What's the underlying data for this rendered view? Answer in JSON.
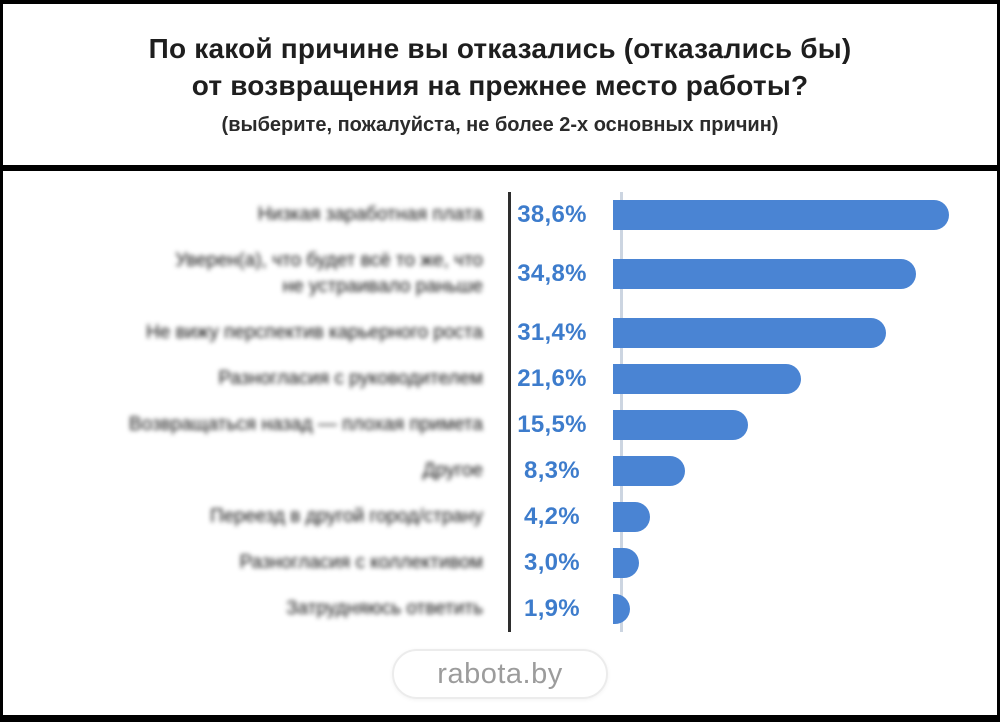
{
  "header": {
    "title_line1": "По какой причине вы отказались (отказались бы)",
    "title_line2": "от возвращения на прежнее место работы?",
    "subtitle": "(выберите, пожалуйста, не более 2-х основных причин)"
  },
  "chart_data": {
    "type": "bar",
    "orientation": "horizontal",
    "title": "По какой причине вы отказались (отказались бы) от возвращения на прежнее место работы?",
    "subtitle": "(выберите, пожалуйста, не более 2-х основных причин)",
    "categories": [
      "Низкая заработная плата",
      "Уверен(а), что будет всё то же, что не устраивало раньше",
      "Не вижу перспектив карьерного роста",
      "Разногласия с руководителем",
      "Возвращаться назад — плохая примета",
      "Другое",
      "Переезд в другой город/страну",
      "Разногласия с коллективом",
      "Затрудняюсь ответить"
    ],
    "values": [
      38.6,
      34.8,
      31.4,
      21.6,
      15.5,
      8.3,
      4.2,
      3.0,
      1.9
    ],
    "value_labels": [
      "38,6%",
      "34,8%",
      "31,4%",
      "21,6%",
      "15,5%",
      "8,3%",
      "4,2%",
      "3,0%",
      "1,9%"
    ],
    "xlabel": "",
    "ylabel": "",
    "xlim": [
      0,
      40
    ],
    "grid": false,
    "legend": false,
    "bar_color": "#4a84d3",
    "value_label_color": "#3d7ccc"
  },
  "rows": [
    {
      "label_lines": [
        "Низкая заработная плата"
      ],
      "value": 38.6,
      "value_label": "38,6%"
    },
    {
      "label_lines": [
        "Уверен(а), что будет всё то же, что",
        "не устраивало раньше"
      ],
      "value": 34.8,
      "value_label": "34,8%"
    },
    {
      "label_lines": [
        "Не вижу перспектив карьерного роста"
      ],
      "value": 31.4,
      "value_label": "31,4%"
    },
    {
      "label_lines": [
        "Разногласия с руководителем"
      ],
      "value": 21.6,
      "value_label": "21,6%"
    },
    {
      "label_lines": [
        "Возвращаться назад — плохая примета"
      ],
      "value": 15.5,
      "value_label": "15,5%"
    },
    {
      "label_lines": [
        "Другое"
      ],
      "value": 8.3,
      "value_label": "8,3%"
    },
    {
      "label_lines": [
        "Переезд в другой город/страну"
      ],
      "value": 4.2,
      "value_label": "4,2%"
    },
    {
      "label_lines": [
        "Разногласия с коллективом"
      ],
      "value": 3.0,
      "value_label": "3,0%"
    },
    {
      "label_lines": [
        "Затрудняюсь ответить"
      ],
      "value": 1.9,
      "value_label": "1,9%"
    }
  ],
  "footer": {
    "brand": "rabota.by"
  }
}
